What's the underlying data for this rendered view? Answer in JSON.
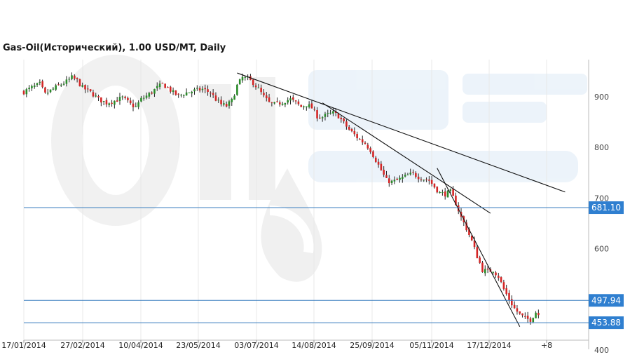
{
  "chart_data": {
    "type": "candlestick",
    "title": "Gas-Oil(Исторический), 1.00 USD/MT, Daily",
    "ylim": [
      400,
      960
    ],
    "y_ticks": [
      400,
      600,
      700,
      800,
      900
    ],
    "x_ticks": [
      "17/01/2014",
      "27/02/2014",
      "10/04/2014",
      "23/05/2014",
      "03/07/2014",
      "14/08/2014",
      "25/09/2014",
      "05/11/2014",
      "17/12/2014",
      "+8"
    ],
    "horizontal_levels": [
      681.1,
      497.94,
      453.88
    ],
    "horizontal_level_labels": [
      "681.10",
      "497.94",
      "453.88"
    ],
    "series_close_path": [
      [
        0,
        910
      ],
      [
        3,
        918
      ],
      [
        6,
        925
      ],
      [
        8,
        905
      ],
      [
        10,
        912
      ],
      [
        13,
        922
      ],
      [
        16,
        930
      ],
      [
        18,
        938
      ],
      [
        20,
        932
      ],
      [
        22,
        918
      ],
      [
        24,
        912
      ],
      [
        26,
        905
      ],
      [
        28,
        895
      ],
      [
        31,
        888
      ],
      [
        34,
        892
      ],
      [
        37,
        898
      ],
      [
        40,
        885
      ],
      [
        42,
        880
      ],
      [
        44,
        895
      ],
      [
        47,
        905
      ],
      [
        50,
        918
      ],
      [
        52,
        925
      ],
      [
        54,
        918
      ],
      [
        56,
        908
      ],
      [
        58,
        902
      ],
      [
        61,
        908
      ],
      [
        64,
        912
      ],
      [
        67,
        915
      ],
      [
        70,
        908
      ],
      [
        72,
        895
      ],
      [
        74,
        885
      ],
      [
        76,
        882
      ],
      [
        78,
        892
      ],
      [
        80,
        922
      ],
      [
        82,
        938
      ],
      [
        84,
        935
      ],
      [
        86,
        928
      ],
      [
        88,
        915
      ],
      [
        90,
        900
      ],
      [
        92,
        888
      ],
      [
        94,
        885
      ],
      [
        96,
        888
      ],
      [
        98,
        892
      ],
      [
        100,
        895
      ],
      [
        102,
        888
      ],
      [
        104,
        880
      ],
      [
        106,
        885
      ],
      [
        108,
        878
      ],
      [
        110,
        862
      ],
      [
        112,
        860
      ],
      [
        114,
        865
      ],
      [
        116,
        868
      ],
      [
        118,
        862
      ],
      [
        120,
        848
      ],
      [
        122,
        835
      ],
      [
        124,
        825
      ],
      [
        126,
        815
      ],
      [
        128,
        808
      ],
      [
        130,
        795
      ],
      [
        132,
        775
      ],
      [
        134,
        755
      ],
      [
        136,
        735
      ],
      [
        138,
        732
      ],
      [
        140,
        735
      ],
      [
        142,
        740
      ],
      [
        144,
        745
      ],
      [
        146,
        748
      ],
      [
        148,
        742
      ],
      [
        150,
        738
      ],
      [
        152,
        735
      ],
      [
        154,
        722
      ],
      [
        156,
        710
      ],
      [
        158,
        708
      ],
      [
        160,
        712
      ],
      [
        162,
        690
      ],
      [
        164,
        662
      ],
      [
        166,
        640
      ],
      [
        168,
        615
      ],
      [
        170,
        585
      ],
      [
        172,
        558
      ],
      [
        174,
        555
      ],
      [
        176,
        558
      ],
      [
        178,
        545
      ],
      [
        180,
        520
      ],
      [
        182,
        500
      ],
      [
        184,
        482
      ],
      [
        186,
        470
      ],
      [
        188,
        462
      ],
      [
        190,
        460
      ],
      [
        192,
        475
      ],
      [
        193,
        470
      ]
    ],
    "trend_lines": [
      [
        [
          80,
          947
        ],
        [
          203,
          712
        ]
      ],
      [
        [
          112,
          888
        ],
        [
          175,
          670
        ]
      ],
      [
        [
          155,
          759
        ],
        [
          186,
          446
        ]
      ]
    ],
    "last_index": 193,
    "axis_right_index": 200
  }
}
